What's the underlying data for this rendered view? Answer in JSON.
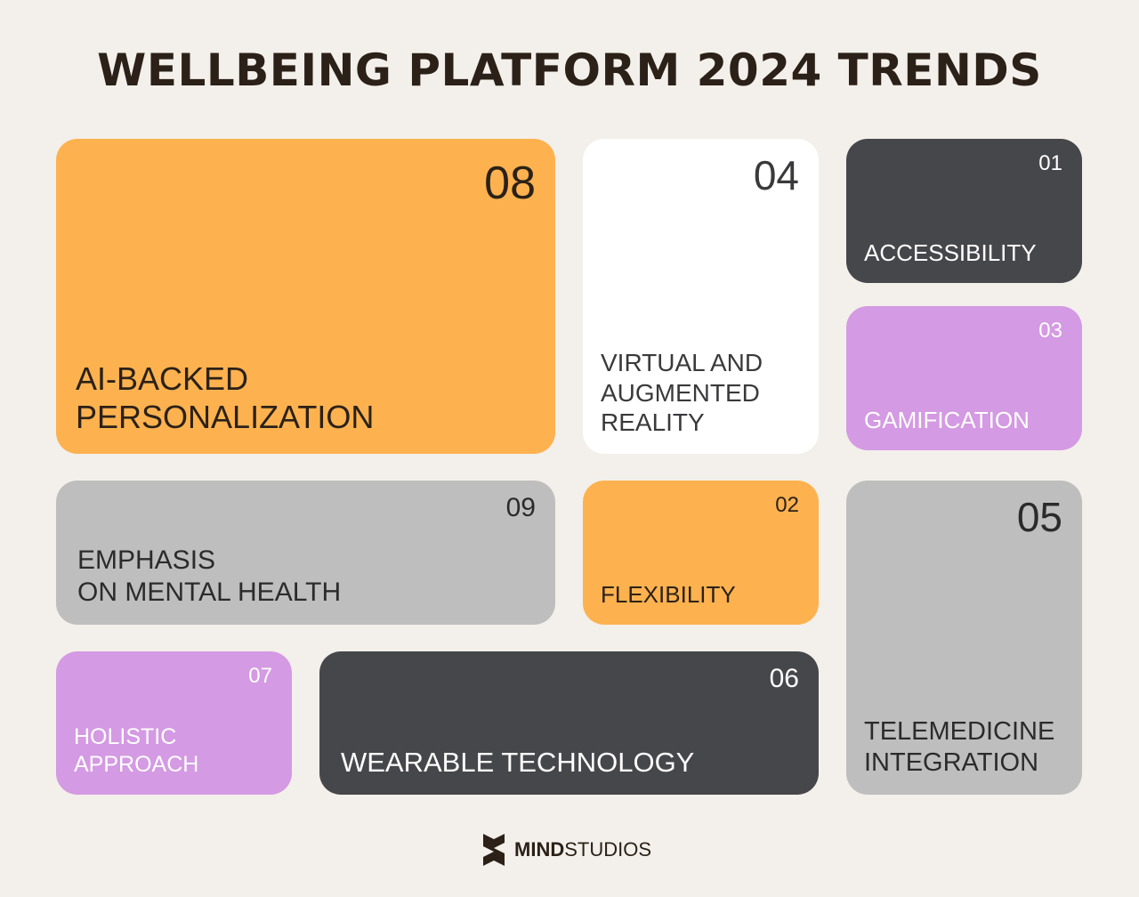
{
  "title": "WELLBEING PLATFORM 2024 TRENDS",
  "tiles": [
    {
      "number": "08",
      "label": [
        "AI-BACKED",
        "PERSONALIZATION"
      ]
    },
    {
      "number": "04",
      "label": [
        "VIRTUAL AND",
        "AUGMENTED",
        "REALITY"
      ]
    },
    {
      "number": "01",
      "label": [
        "ACCESSIBILITY"
      ]
    },
    {
      "number": "03",
      "label": [
        "GAMIFICATION"
      ]
    },
    {
      "number": "09",
      "label": [
        "EMPHASIS",
        "ON MENTAL HEALTH"
      ]
    },
    {
      "number": "02",
      "label": [
        "FLEXIBILITY"
      ]
    },
    {
      "number": "05",
      "label": [
        "TELEMEDICINE",
        "INTEGRATION"
      ]
    },
    {
      "number": "07",
      "label": [
        "HOLISTIC",
        "APPROACH"
      ]
    },
    {
      "number": "06",
      "label": [
        "WEARABLE TECHNOLOGY"
      ]
    }
  ],
  "footer": {
    "brand_bold": "MIND",
    "brand_light": "STUDIOS"
  }
}
